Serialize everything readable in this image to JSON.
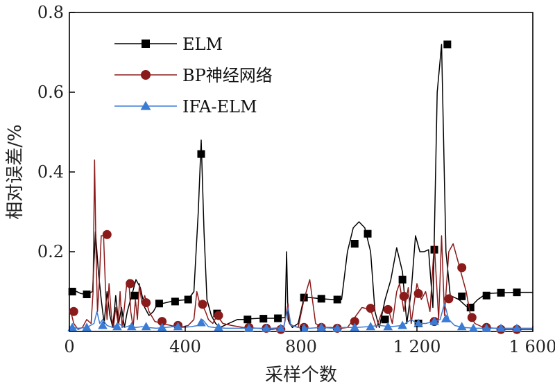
{
  "chart_data": {
    "type": "line",
    "xlabel": "采样个数",
    "ylabel": "相对误差/%",
    "xlim": [
      0,
      1600
    ],
    "ylim": [
      0,
      0.8
    ],
    "x_ticks": [
      0,
      400,
      800,
      1200,
      1600
    ],
    "x_tick_labels": [
      "0",
      "400",
      "800",
      "1 200",
      "1 600"
    ],
    "y_ticks": [
      0.2,
      0.4,
      0.6,
      0.8
    ],
    "y_tick_labels": [
      "0.2",
      "0.4",
      "0.6",
      "0.8"
    ],
    "grid": false,
    "legend_position": "top-left",
    "series": [
      {
        "name": "ELM",
        "color": "#000000",
        "marker": "square",
        "x": [
          5,
          20,
          40,
          60,
          80,
          90,
          100,
          110,
          120,
          130,
          140,
          150,
          160,
          170,
          180,
          190,
          200,
          215,
          230,
          245,
          260,
          275,
          290,
          305,
          320,
          350,
          380,
          410,
          430,
          445,
          455,
          465,
          475,
          490,
          505,
          520,
          550,
          580,
          610,
          630,
          660,
          690,
          720,
          745,
          750,
          755,
          760,
          770,
          790,
          810,
          830,
          870,
          910,
          940,
          960,
          980,
          1000,
          1020,
          1040,
          1055,
          1070,
          1090,
          1110,
          1130,
          1150,
          1165,
          1180,
          1195,
          1210,
          1225,
          1240,
          1255,
          1270,
          1285,
          1300,
          1315,
          1330,
          1345,
          1360,
          1375,
          1390,
          1410,
          1440,
          1490,
          1540,
          1600
        ],
        "y": [
          0.1,
          0.102,
          0.095,
          0.093,
          0.1,
          0.25,
          0.15,
          0.08,
          0.02,
          0.1,
          0.04,
          0.01,
          0.09,
          0.02,
          0.06,
          0.01,
          0.05,
          0.09,
          0.13,
          0.11,
          0.06,
          0.04,
          0.05,
          0.07,
          0.07,
          0.075,
          0.078,
          0.08,
          0.1,
          0.3,
          0.48,
          0.25,
          0.08,
          0.04,
          0.02,
          0.01,
          0.02,
          0.03,
          0.03,
          0.032,
          0.033,
          0.033,
          0.033,
          0.035,
          0.2,
          0.03,
          0.02,
          0.01,
          0.02,
          0.085,
          0.085,
          0.082,
          0.08,
          0.08,
          0.2,
          0.26,
          0.275,
          0.26,
          0.2,
          0.05,
          0.01,
          0.08,
          0.13,
          0.21,
          0.15,
          0.02,
          0.1,
          0.24,
          0.2,
          0.2,
          0.205,
          0.06,
          0.6,
          0.72,
          0.2,
          0.09,
          0.085,
          0.08,
          0.07,
          0.06,
          0.065,
          0.08,
          0.095,
          0.097,
          0.098,
          0.098
        ],
        "marker_x": [
          10,
          60,
          225,
          310,
          365,
          410,
          455,
          510,
          615,
          670,
          720,
          810,
          870,
          925,
          985,
          1030,
          1090,
          1150,
          1205,
          1260,
          1305,
          1355,
          1385,
          1440,
          1490,
          1545
        ],
        "marker_y": [
          0.1,
          0.093,
          0.09,
          0.07,
          0.075,
          0.08,
          0.445,
          0.045,
          0.03,
          0.032,
          0.033,
          0.085,
          0.082,
          0.08,
          0.22,
          0.245,
          0.03,
          0.13,
          0.02,
          0.205,
          0.72,
          0.088,
          0.06,
          0.09,
          0.097,
          0.098
        ]
      },
      {
        "name": "BP神经网络",
        "color": "#8b1a1a",
        "marker": "circle",
        "x": [
          5,
          15,
          30,
          45,
          60,
          75,
          82,
          87,
          92,
          97,
          103,
          110,
          118,
          125,
          130,
          137,
          145,
          152,
          160,
          168,
          175,
          182,
          190,
          198,
          205,
          212,
          220,
          228,
          235,
          242,
          250,
          260,
          275,
          295,
          320,
          350,
          380,
          410,
          430,
          440,
          450,
          460,
          470,
          480,
          495,
          510,
          530,
          560,
          600,
          650,
          700,
          740,
          755,
          760,
          770,
          790,
          810,
          830,
          850,
          870,
          900,
          940,
          960,
          980,
          1010,
          1040,
          1060,
          1080,
          1100,
          1115,
          1130,
          1140,
          1155,
          1170,
          1180,
          1200,
          1215,
          1230,
          1245,
          1260,
          1275,
          1285,
          1295,
          1310,
          1325,
          1340,
          1355,
          1370,
          1385,
          1400,
          1430,
          1470,
          1510,
          1550,
          1600
        ],
        "y": [
          0.05,
          0.02,
          0.005,
          0.01,
          0.03,
          0.02,
          0.1,
          0.43,
          0.2,
          0.05,
          0.12,
          0.24,
          0.24,
          0.1,
          0.03,
          0.12,
          0.04,
          0.01,
          0.06,
          0.02,
          0.1,
          0.01,
          0.06,
          0.12,
          0.13,
          0.05,
          0.01,
          0.08,
          0.03,
          0.12,
          0.07,
          0.09,
          0.05,
          0.025,
          0.02,
          0.015,
          0.01,
          0.015,
          0.03,
          0.1,
          0.07,
          0.065,
          0.05,
          0.03,
          0.02,
          0.04,
          0.02,
          0.015,
          0.01,
          0.008,
          0.005,
          0.01,
          0.07,
          0.02,
          0.015,
          0.01,
          0.08,
          0.13,
          0.02,
          0.01,
          0.01,
          0.008,
          0.01,
          0.03,
          0.06,
          0.055,
          0.01,
          0.05,
          0.06,
          0.02,
          0.1,
          0.12,
          0.05,
          0.11,
          0.02,
          0.12,
          0.08,
          0.1,
          0.05,
          0.22,
          0.03,
          0.24,
          0.04,
          0.2,
          0.22,
          0.18,
          0.14,
          0.1,
          0.04,
          0.02,
          0.01,
          0.008,
          0.005,
          0.005,
          0.005
        ],
        "marker_x": [
          15,
          130,
          210,
          265,
          320,
          375,
          460,
          515,
          620,
          680,
          730,
          810,
          870,
          925,
          985,
          1040,
          1100,
          1155,
          1205,
          1260,
          1310,
          1355,
          1390,
          1440,
          1490,
          1545
        ],
        "marker_y": [
          0.05,
          0.243,
          0.12,
          0.072,
          0.025,
          0.015,
          0.068,
          0.04,
          0.01,
          0.008,
          0.005,
          0.01,
          0.01,
          0.008,
          0.025,
          0.058,
          0.055,
          0.088,
          0.095,
          0.025,
          0.082,
          0.16,
          0.035,
          0.01,
          0.005,
          0.005
        ]
      },
      {
        "name": "IFA-ELM",
        "color": "#3a7bd5",
        "marker": "triangle",
        "x": [
          5,
          30,
          60,
          85,
          95,
          105,
          115,
          130,
          150,
          170,
          190,
          210,
          230,
          250,
          270,
          300,
          330,
          360,
          390,
          420,
          445,
          460,
          480,
          500,
          540,
          580,
          620,
          660,
          700,
          740,
          755,
          765,
          790,
          830,
          870,
          910,
          950,
          990,
          1030,
          1070,
          1110,
          1150,
          1180,
          1200,
          1230,
          1260,
          1280,
          1295,
          1310,
          1330,
          1360,
          1400,
          1450,
          1500,
          1550,
          1600
        ],
        "y": [
          0.01,
          0.008,
          0.01,
          0.02,
          0.05,
          0.02,
          0.03,
          0.015,
          0.01,
          0.02,
          0.01,
          0.015,
          0.01,
          0.012,
          0.01,
          0.008,
          0.01,
          0.012,
          0.01,
          0.012,
          0.015,
          0.03,
          0.012,
          0.01,
          0.008,
          0.008,
          0.008,
          0.008,
          0.008,
          0.01,
          0.06,
          0.015,
          0.01,
          0.008,
          0.01,
          0.008,
          0.01,
          0.01,
          0.012,
          0.015,
          0.012,
          0.015,
          0.03,
          0.02,
          0.02,
          0.025,
          0.03,
          0.07,
          0.03,
          0.015,
          0.01,
          0.008,
          0.008,
          0.008,
          0.008,
          0.008
        ],
        "marker_x": [
          10,
          60,
          115,
          165,
          215,
          265,
          320,
          375,
          455,
          515,
          620,
          680,
          730,
          810,
          870,
          925,
          985,
          1040,
          1100,
          1150,
          1205,
          1260,
          1300,
          1355,
          1395,
          1440,
          1490,
          1545
        ],
        "marker_y": [
          0.01,
          0.01,
          0.015,
          0.012,
          0.012,
          0.012,
          0.01,
          0.012,
          0.022,
          0.01,
          0.008,
          0.008,
          0.008,
          0.008,
          0.01,
          0.008,
          0.01,
          0.012,
          0.012,
          0.015,
          0.02,
          0.025,
          0.032,
          0.012,
          0.008,
          0.008,
          0.008,
          0.008
        ]
      }
    ]
  }
}
